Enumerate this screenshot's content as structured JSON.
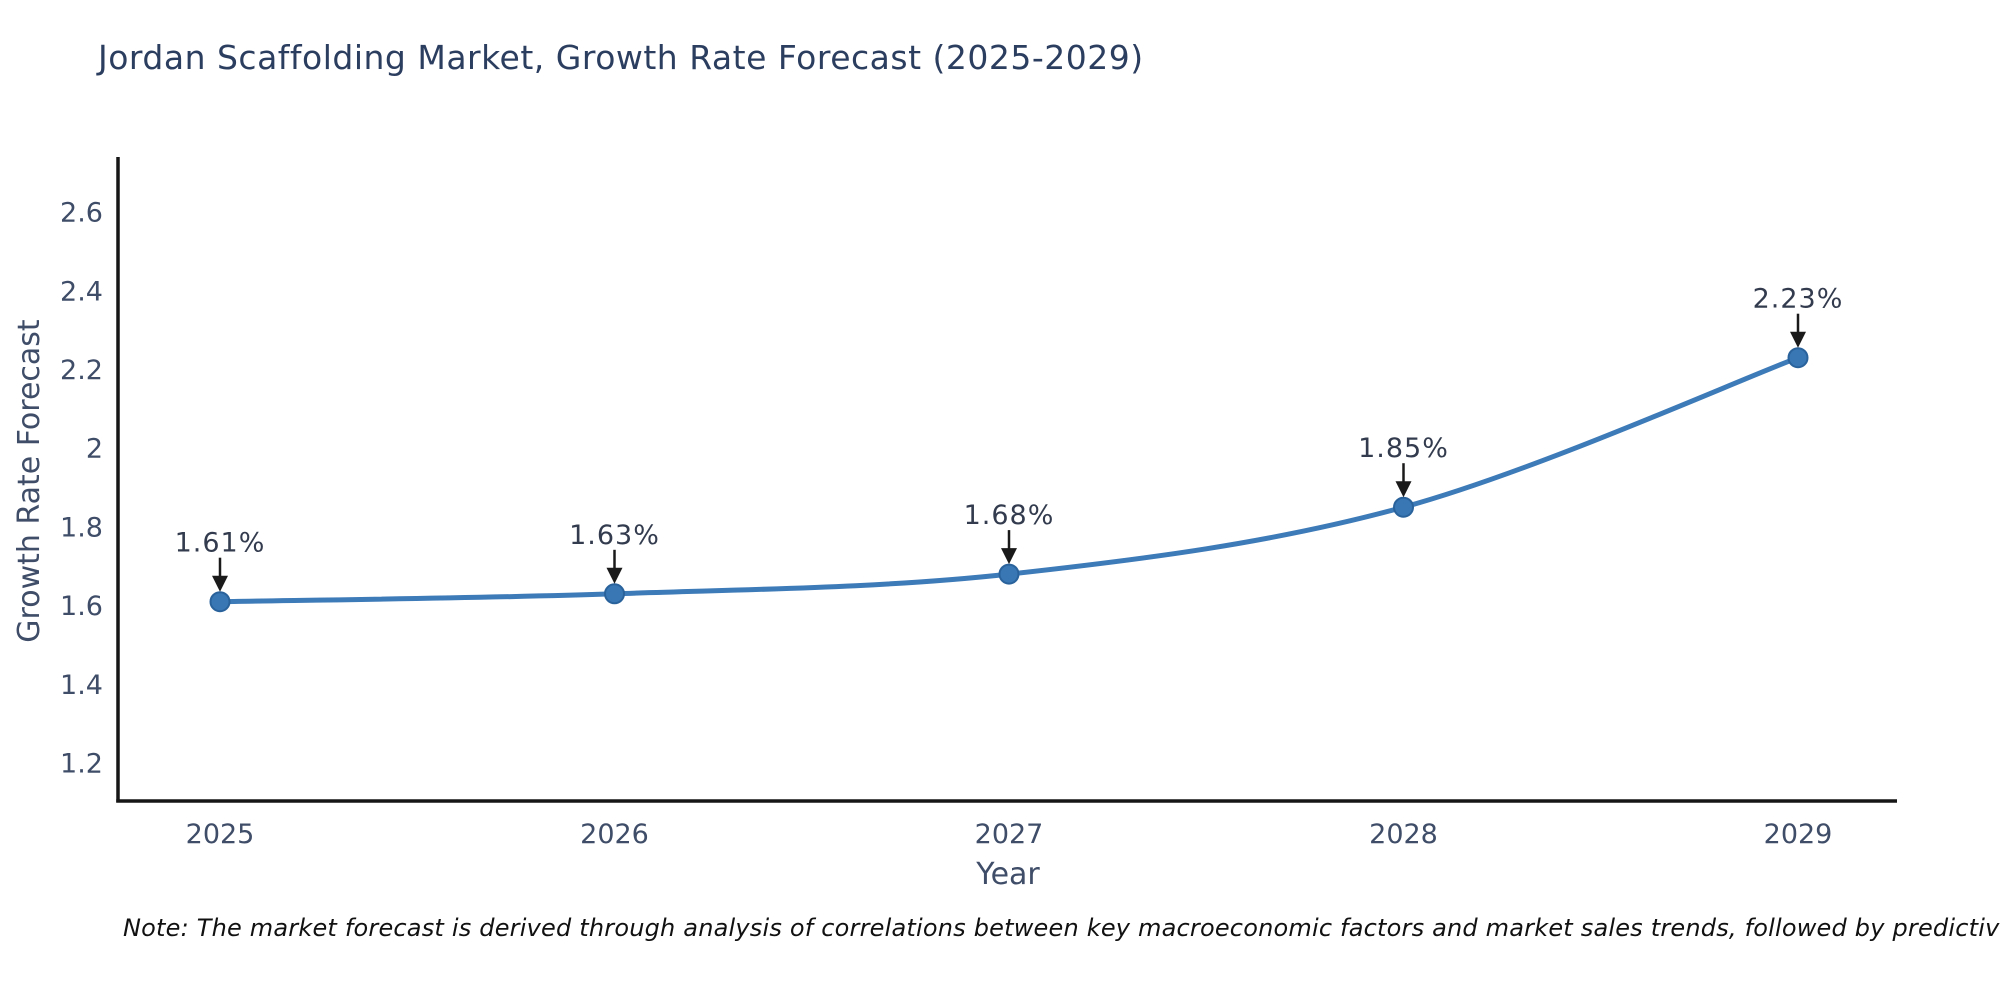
{
  "page": {
    "title": "Jordan Scaffolding Market, Growth Rate Forecast (2025-2029)",
    "note": "Note: The market forecast is derived through analysis of correlations between key macroeconomic factors and market sales trends, followed by predictive modeling to project future sales"
  },
  "chart_data": {
    "type": "line",
    "title": "Jordan Scaffolding Market, Growth Rate Forecast (2025-2029)",
    "xlabel": "Year",
    "ylabel": "Growth Rate Forecast",
    "x": [
      2025,
      2026,
      2027,
      2028,
      2029
    ],
    "y": [
      1.61,
      1.63,
      1.68,
      1.85,
      2.23
    ],
    "series": [
      {
        "name": "Growth Rate Forecast",
        "values": [
          1.61,
          1.63,
          1.68,
          1.85,
          2.23
        ]
      }
    ],
    "annotations": [
      "1.61%",
      "1.63%",
      "1.68%",
      "1.85%",
      "2.23%"
    ],
    "xticks": [
      "2025",
      "2026",
      "2027",
      "2028",
      "2029"
    ],
    "yticks": [
      1.2,
      1.4,
      1.6,
      1.8,
      2.0,
      2.2,
      2.4,
      2.6
    ],
    "ytick_labels": [
      "1.2",
      "1.4",
      "1.6",
      "1.8",
      "2",
      "2.2",
      "2.4",
      "2.6"
    ],
    "xlim": [
      2024.74,
      2029.25
    ],
    "ylim": [
      1.1,
      2.74
    ],
    "grid": false,
    "legend": false,
    "line_shape": "spline",
    "colors": {
      "line": "#3d7ab8",
      "marker_fill": "#3876b4",
      "marker_stroke": "#2a639c",
      "axis_line": "#161616",
      "tick_font": "#3f4d68",
      "title_font": "#2c3e60",
      "annotation_font": "#333c4e",
      "annotation_arrow": "#1a1a1a"
    }
  }
}
